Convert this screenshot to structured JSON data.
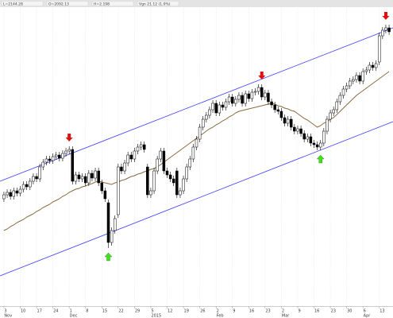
{
  "header_fields": [
    "L=2144.28",
    "O=2092.13",
    "H=2.198",
    "Vgn 21.12 (1.0%)"
  ],
  "chart_data": {
    "type": "candlestick",
    "grid": true,
    "xlim": [
      -1.2,
      119.2
    ],
    "ylim": [
      15,
      390
    ],
    "xticks": [
      {
        "value": 0,
        "label": "3"
      },
      {
        "value": 5,
        "label": "10"
      },
      {
        "value": 10,
        "label": "17"
      },
      {
        "value": 15,
        "label": "24"
      },
      {
        "value": 20,
        "label": "1"
      },
      {
        "value": 25,
        "label": "8"
      },
      {
        "value": 30,
        "label": "15"
      },
      {
        "value": 35,
        "label": "22"
      },
      {
        "value": 40,
        "label": "29"
      },
      {
        "value": 45,
        "label": "5"
      },
      {
        "value": 50,
        "label": "12"
      },
      {
        "value": 55,
        "label": "19"
      },
      {
        "value": 60,
        "label": "26"
      },
      {
        "value": 65,
        "label": "2"
      },
      {
        "value": 70,
        "label": "9"
      },
      {
        "value": 75,
        "label": "16"
      },
      {
        "value": 80,
        "label": "23"
      },
      {
        "value": 85,
        "label": "2"
      },
      {
        "value": 90,
        "label": "9"
      },
      {
        "value": 95,
        "label": "16"
      },
      {
        "value": 100,
        "label": "23"
      },
      {
        "value": 105,
        "label": "30"
      },
      {
        "value": 110,
        "label": "6"
      },
      {
        "value": 115,
        "label": "13"
      }
    ],
    "month_labels": [
      {
        "value": 0,
        "label": "Nov"
      },
      {
        "value": 20,
        "label": "Dec"
      },
      {
        "value": 45,
        "label": "2015"
      },
      {
        "value": 65,
        "label": "Feb"
      },
      {
        "value": 85,
        "label": "Mar"
      },
      {
        "value": 110,
        "label": "Apr"
      }
    ],
    "up_color": "#ffffff",
    "down_color": "#000000",
    "open": [
      150,
      155,
      158,
      153,
      160,
      157,
      162,
      168,
      165,
      172,
      178,
      175,
      190,
      196,
      200,
      198,
      203,
      205,
      201,
      207,
      210,
      212,
      172,
      180,
      175,
      178,
      170,
      182,
      176,
      185,
      170,
      160,
      145,
      95,
      110,
      130,
      190,
      185,
      195,
      205,
      200,
      210,
      215,
      218,
      190,
      155,
      160,
      185,
      200,
      210,
      185,
      180,
      175,
      185,
      155,
      160,
      175,
      190,
      200,
      215,
      225,
      240,
      250,
      255,
      262,
      270,
      258,
      268,
      265,
      272,
      278,
      270,
      275,
      280,
      270,
      282,
      276,
      284,
      285,
      290,
      278,
      283,
      272,
      268,
      262,
      260,
      252,
      245,
      250,
      240,
      235,
      238,
      232,
      225,
      228,
      220,
      218,
      215,
      220,
      235,
      250,
      258,
      262,
      272,
      280,
      288,
      292,
      298,
      300,
      305,
      298,
      310,
      312,
      318,
      315,
      322,
      355,
      362,
      365
    ],
    "high": [
      159,
      162,
      162,
      164,
      164,
      166,
      172,
      172,
      176,
      182,
      182,
      194,
      200,
      204,
      204,
      207,
      209,
      209,
      211,
      214,
      216,
      216,
      184,
      184,
      182,
      182,
      186,
      186,
      189,
      189,
      174,
      164,
      149,
      114,
      129,
      194,
      194,
      199,
      209,
      209,
      214,
      219,
      222,
      222,
      194,
      164,
      189,
      204,
      214,
      214,
      189,
      184,
      179,
      189,
      164,
      179,
      194,
      204,
      219,
      229,
      244,
      254,
      259,
      266,
      274,
      274,
      272,
      272,
      276,
      282,
      282,
      279,
      284,
      284,
      286,
      286,
      288,
      289,
      294,
      294,
      287,
      287,
      276,
      272,
      266,
      264,
      256,
      254,
      254,
      244,
      242,
      242,
      236,
      232,
      232,
      224,
      222,
      224,
      239,
      254,
      262,
      266,
      276,
      284,
      292,
      296,
      302,
      304,
      309,
      309,
      314,
      316,
      322,
      322,
      324,
      359,
      366,
      369,
      369
    ],
    "low": [
      146,
      151,
      149,
      149,
      153,
      153,
      158,
      161,
      161,
      168,
      171,
      171,
      186,
      192,
      194,
      194,
      199,
      197,
      197,
      203,
      206,
      168,
      168,
      171,
      171,
      166,
      166,
      172,
      172,
      166,
      156,
      146,
      88,
      91,
      106,
      126,
      181,
      181,
      191,
      196,
      196,
      206,
      211,
      208,
      151,
      151,
      156,
      181,
      196,
      181,
      176,
      171,
      166,
      151,
      151,
      156,
      171,
      186,
      196,
      211,
      221,
      236,
      246,
      251,
      258,
      254,
      254,
      261,
      261,
      268,
      266,
      266,
      271,
      266,
      266,
      272,
      272,
      280,
      281,
      274,
      274,
      268,
      264,
      258,
      256,
      248,
      241,
      241,
      236,
      231,
      231,
      228,
      221,
      221,
      216,
      214,
      211,
      211,
      216,
      231,
      246,
      254,
      258,
      268,
      276,
      284,
      288,
      294,
      296,
      294,
      294,
      306,
      308,
      311,
      311,
      318,
      351,
      358,
      356
    ],
    "close": [
      155,
      158,
      153,
      160,
      157,
      162,
      168,
      165,
      172,
      178,
      175,
      190,
      196,
      200,
      198,
      203,
      205,
      201,
      207,
      210,
      212,
      172,
      180,
      175,
      178,
      170,
      182,
      176,
      185,
      170,
      160,
      150,
      95,
      110,
      125,
      190,
      185,
      195,
      205,
      200,
      210,
      215,
      218,
      212,
      155,
      160,
      185,
      200,
      210,
      185,
      180,
      175,
      170,
      155,
      160,
      175,
      190,
      200,
      215,
      225,
      240,
      250,
      255,
      262,
      270,
      258,
      268,
      265,
      272,
      278,
      270,
      275,
      280,
      270,
      282,
      276,
      284,
      285,
      290,
      278,
      283,
      272,
      268,
      262,
      260,
      252,
      245,
      250,
      240,
      235,
      238,
      232,
      225,
      228,
      220,
      218,
      215,
      220,
      235,
      250,
      258,
      262,
      272,
      280,
      288,
      292,
      298,
      300,
      305,
      298,
      310,
      312,
      318,
      315,
      320,
      355,
      362,
      365,
      360
    ],
    "moving_average": {
      "color": "#8b6a3e",
      "values": [
        110,
        112,
        115,
        117,
        120,
        122,
        124,
        127,
        129,
        131,
        134,
        136,
        139,
        141,
        143,
        146,
        148,
        150,
        153,
        155,
        158,
        160,
        162,
        163,
        165,
        166,
        168,
        169,
        171,
        172,
        171,
        170,
        169,
        168,
        170,
        171,
        173,
        174,
        176,
        178,
        179,
        181,
        182,
        184,
        185,
        187,
        188,
        190,
        193,
        196,
        199,
        202,
        205,
        208,
        211,
        214,
        217,
        220,
        223,
        226,
        229,
        232,
        235,
        238,
        240,
        243,
        245,
        248,
        250,
        253,
        255,
        258,
        260,
        261,
        262,
        263,
        264,
        265,
        266,
        267,
        268,
        269,
        270,
        269,
        267,
        266,
        264,
        263,
        261,
        260,
        257,
        254,
        251,
        249,
        246,
        243,
        240,
        242,
        245,
        247,
        250,
        252,
        256,
        260,
        264,
        268,
        272,
        276,
        280,
        283,
        286,
        289,
        292,
        295,
        298,
        301,
        304,
        307,
        310
      ]
    },
    "channels": [
      {
        "color": "#4b4bff",
        "x": [
          -1.2,
          119.2
        ],
        "values": [
          172,
          365
        ]
      },
      {
        "color": "#4b4bff",
        "x": [
          -1.2,
          119.2
        ],
        "values": [
          53,
          247
        ]
      }
    ],
    "sell_signals": {
      "color": "#dd1111",
      "x": [
        20,
        79,
        117
      ]
    },
    "buy_signals": {
      "color": "#44dd22",
      "x": [
        32,
        97
      ]
    }
  }
}
